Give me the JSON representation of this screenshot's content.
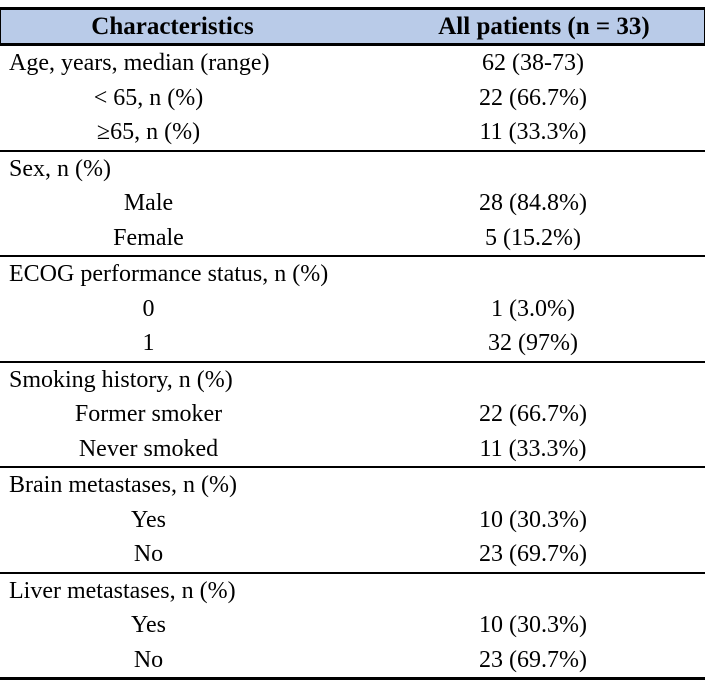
{
  "table": {
    "header": {
      "col1": "Characteristics",
      "col2": "All patients (n = 33)"
    },
    "header_bg_color": "#b9cbe8",
    "rule_color": "#000000",
    "sections": [
      {
        "name": "age",
        "rows": [
          {
            "label": "Age, years, median (range)",
            "value": "62 (38-73)",
            "indent": false
          },
          {
            "label": "< 65, n (%)",
            "value": "22 (66.7%)",
            "indent": true
          },
          {
            "label": "≥65, n (%)",
            "value": "11 (33.3%)",
            "indent": true
          }
        ]
      },
      {
        "name": "sex",
        "rows": [
          {
            "label": "Sex, n (%)",
            "value": "",
            "indent": false
          },
          {
            "label": "Male",
            "value": "28 (84.8%)",
            "indent": true
          },
          {
            "label": "Female",
            "value": "5 (15.2%)",
            "indent": true
          }
        ]
      },
      {
        "name": "ecog",
        "rows": [
          {
            "label": "ECOG performance status, n (%)",
            "value": "",
            "indent": false
          },
          {
            "label": "0",
            "value": "1 (3.0%)",
            "indent": true
          },
          {
            "label": "1",
            "value": "32 (97%)",
            "indent": true
          }
        ]
      },
      {
        "name": "smoking",
        "rows": [
          {
            "label": "Smoking history, n (%)",
            "value": "",
            "indent": false
          },
          {
            "label": "Former smoker",
            "value": "22 (66.7%)",
            "indent": true
          },
          {
            "label": "Never smoked",
            "value": "11 (33.3%)",
            "indent": true
          }
        ]
      },
      {
        "name": "brain-metastases",
        "rows": [
          {
            "label": "Brain metastases, n (%)",
            "value": "",
            "indent": false
          },
          {
            "label": "Yes",
            "value": "10 (30.3%)",
            "indent": true
          },
          {
            "label": "No",
            "value": "23 (69.7%)",
            "indent": true
          }
        ]
      },
      {
        "name": "liver-metastases",
        "rows": [
          {
            "label": "Liver metastases, n (%)",
            "value": "",
            "indent": false
          },
          {
            "label": "Yes",
            "value": "10 (30.3%)",
            "indent": true
          },
          {
            "label": "No",
            "value": "23 (69.7%)",
            "indent": true
          }
        ]
      }
    ]
  }
}
